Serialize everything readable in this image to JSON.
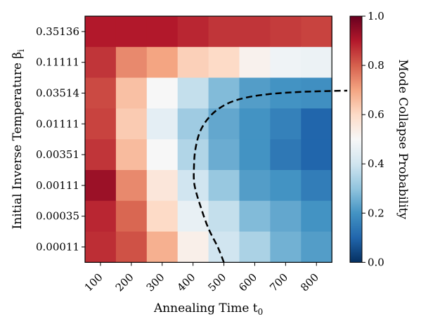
{
  "chart_data": {
    "type": "heatmap",
    "title": "",
    "xlabel": "Annealing Time t",
    "xlabel_subscript": "0",
    "ylabel": "Initial Inverse Temperature β",
    "ylabel_subscript": "i",
    "colorbar_label": "Mode Collapse Probability",
    "x_categories": [
      "100",
      "200",
      "300",
      "400",
      "500",
      "600",
      "700",
      "800"
    ],
    "y_categories": [
      "0.35136",
      "0.11111",
      "0.03514",
      "0.01111",
      "0.00351",
      "0.00111",
      "0.00035",
      "0.00011"
    ],
    "values": [
      [
        0.9,
        0.9,
        0.9,
        0.88,
        0.86,
        0.86,
        0.85,
        0.84
      ],
      [
        0.86,
        0.74,
        0.7,
        0.62,
        0.6,
        0.52,
        0.48,
        0.47
      ],
      [
        0.83,
        0.65,
        0.5,
        0.38,
        0.28,
        0.22,
        0.2,
        0.19
      ],
      [
        0.84,
        0.63,
        0.45,
        0.32,
        0.24,
        0.2,
        0.16,
        0.1
      ],
      [
        0.86,
        0.66,
        0.5,
        0.35,
        0.25,
        0.2,
        0.14,
        0.1
      ],
      [
        0.93,
        0.74,
        0.56,
        0.4,
        0.31,
        0.22,
        0.2,
        0.15
      ],
      [
        0.88,
        0.79,
        0.6,
        0.46,
        0.38,
        0.28,
        0.24,
        0.2
      ],
      [
        0.87,
        0.82,
        0.68,
        0.53,
        0.4,
        0.34,
        0.26,
        0.22
      ]
    ],
    "colormap": "RdBu_r",
    "vmin": 0.0,
    "vmax": 1.0,
    "colorbar_ticks": [
      "0.0",
      "0.2",
      "0.4",
      "0.6",
      "0.8",
      "1.0"
    ],
    "boundary_curve": {
      "style": "dashed",
      "color": "#000000",
      "points": [
        [
          4.0,
          -0.5
        ],
        [
          3.8,
          0.0
        ],
        [
          3.5,
          0.6
        ],
        [
          3.25,
          1.3
        ],
        [
          3.05,
          2.0
        ],
        [
          3.03,
          2.6
        ],
        [
          3.08,
          3.2
        ],
        [
          3.25,
          3.8
        ],
        [
          3.6,
          4.3
        ],
        [
          4.1,
          4.65
        ],
        [
          4.7,
          4.85
        ],
        [
          5.5,
          4.97
        ],
        [
          6.3,
          5.03
        ],
        [
          7.1,
          5.06
        ],
        [
          8.0,
          5.08
        ]
      ]
    }
  }
}
